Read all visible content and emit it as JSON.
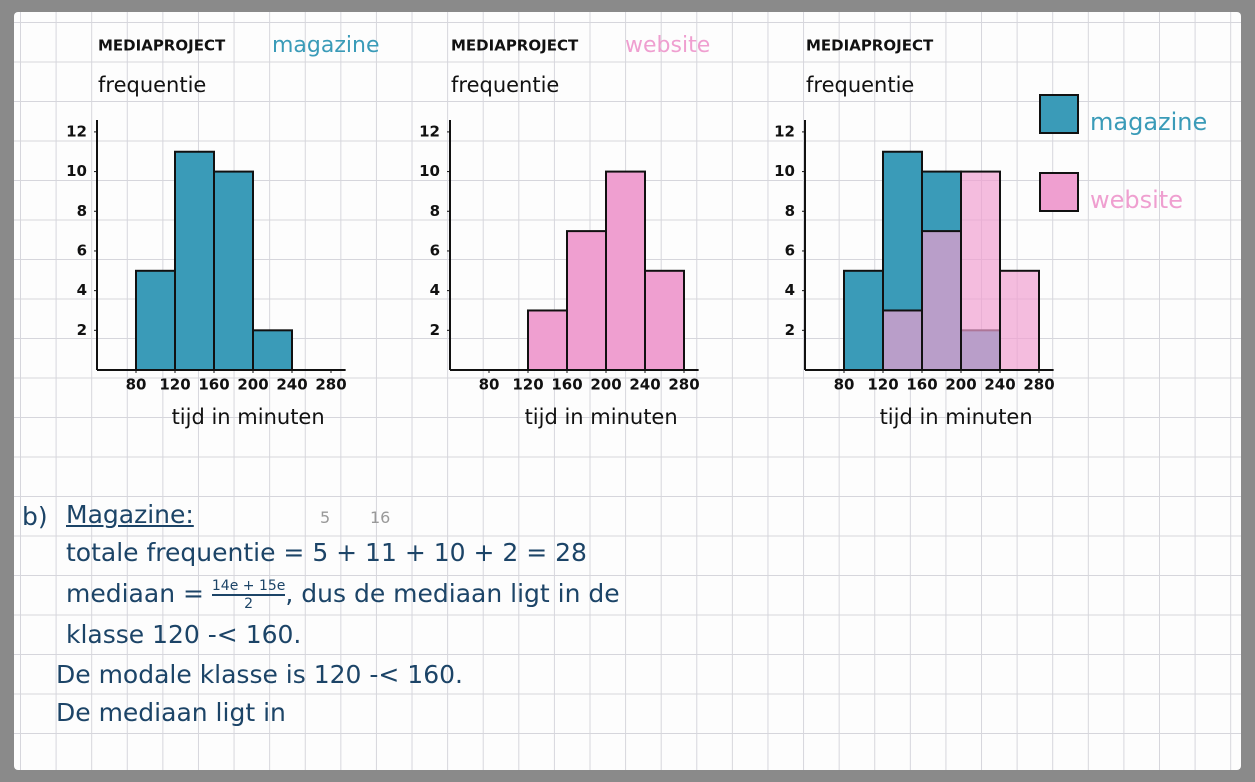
{
  "chart_data": [
    {
      "type": "histogram",
      "title": "MEDIAPROJECT",
      "subtitle": "magazine",
      "ylabel": "frequentie",
      "xlabel": "tijd in minuten",
      "color": "#3a9bb8",
      "bins": [
        80,
        120,
        160,
        200,
        240
      ],
      "values": [
        5,
        11,
        10,
        2
      ],
      "xlim": [
        40,
        295
      ],
      "ylim": [
        0,
        12.6
      ],
      "xticks": [
        80,
        120,
        160,
        200,
        240,
        280
      ],
      "yticks": [
        2,
        4,
        6,
        8,
        10,
        12
      ]
    },
    {
      "type": "histogram",
      "title": "MEDIAPROJECT",
      "subtitle": "website",
      "ylabel": "frequentie",
      "xlabel": "tijd in minuten",
      "color": "#ef9fd0",
      "bins": [
        120,
        160,
        200,
        240,
        280
      ],
      "values": [
        3,
        7,
        10,
        5
      ],
      "xlim": [
        40,
        295
      ],
      "ylim": [
        0,
        12.6
      ],
      "xticks": [
        80,
        120,
        160,
        200,
        240,
        280
      ],
      "yticks": [
        2,
        4,
        6,
        8,
        10,
        12
      ]
    },
    {
      "type": "histogram",
      "title": "MEDIAPROJECT",
      "ylabel": "frequentie",
      "xlabel": "tijd in minuten",
      "series": [
        {
          "name": "magazine",
          "color": "#3a9bb8",
          "bins": [
            80,
            120,
            160,
            200,
            240
          ],
          "values": [
            5,
            11,
            10,
            2
          ]
        },
        {
          "name": "website",
          "color": "#ef9fd0",
          "bins": [
            120,
            160,
            200,
            240,
            280
          ],
          "values": [
            3,
            7,
            10,
            5
          ]
        }
      ],
      "xlim": [
        40,
        295
      ],
      "ylim": [
        0,
        12.6
      ],
      "xticks": [
        80,
        120,
        160,
        200,
        240,
        280
      ],
      "yticks": [
        2,
        4,
        6,
        8,
        10,
        12
      ],
      "legend": "right"
    }
  ],
  "notes": {
    "label": "b)",
    "heading": "Magazine:",
    "annotations": [
      "5",
      "16"
    ],
    "total": "totale frequentie = 5 + 11 + 10 + 2 = 28",
    "median": {
      "before": "mediaan =",
      "numerator": "14e + 15e",
      "denominator": "2",
      "after": ", dus de mediaan ligt in de"
    },
    "lines": [
      "klasse 120 -< 160.",
      "De modale klasse is 120 -< 160.",
      "De mediaan ligt in"
    ]
  }
}
